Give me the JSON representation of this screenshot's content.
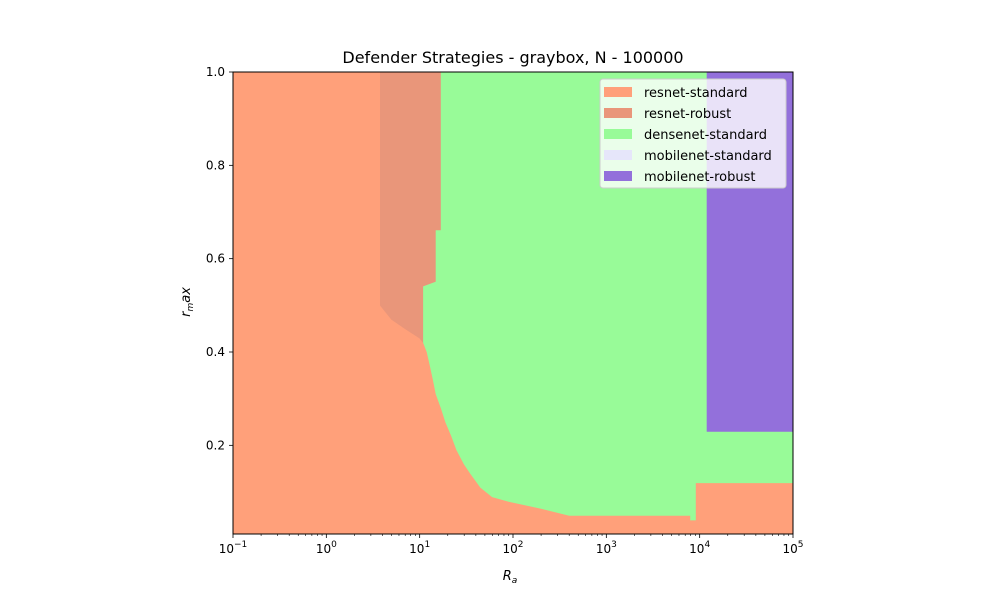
{
  "chart_data": {
    "type": "heatmap",
    "title": "Defender Strategies - graybox, N - 100000",
    "xlabel": "R",
    "xlabel_sub": "a",
    "ylabel": "r",
    "ylabel_sub": "m",
    "ylabel_rest": "ax",
    "x_scale": "log",
    "xlim": [
      0.1,
      100000
    ],
    "ylim": [
      0.01,
      1.0
    ],
    "x_ticks": [
      {
        "base": "10",
        "exp": "−1",
        "value": 0.1
      },
      {
        "base": "10",
        "exp": "0",
        "value": 1
      },
      {
        "base": "10",
        "exp": "1",
        "value": 10
      },
      {
        "base": "10",
        "exp": "2",
        "value": 100
      },
      {
        "base": "10",
        "exp": "3",
        "value": 1000
      },
      {
        "base": "10",
        "exp": "4",
        "value": 10000
      },
      {
        "base": "10",
        "exp": "5",
        "value": 100000
      }
    ],
    "y_ticks": [
      {
        "label": "0.2",
        "value": 0.2
      },
      {
        "label": "0.4",
        "value": 0.4
      },
      {
        "label": "0.6",
        "value": 0.6
      },
      {
        "label": "0.8",
        "value": 0.8
      },
      {
        "label": "1.0",
        "value": 1.0
      }
    ],
    "legend_position": "top-right",
    "legend": [
      {
        "label": "resnet-standard",
        "color": "#ffa07a"
      },
      {
        "label": "resnet-robust",
        "color": "#e9967a"
      },
      {
        "label": "densenet-standard",
        "color": "#98fb98"
      },
      {
        "label": "mobilenet-standard",
        "color": "#e6e6fa"
      },
      {
        "label": "mobilenet-robust",
        "color": "#9370db"
      }
    ],
    "regions": [
      {
        "strategy": "resnet-standard",
        "color": "#ffa07a",
        "polygon": [
          [
            0.1,
            0.01
          ],
          [
            0.1,
            1.0
          ],
          [
            3.8,
            1.0
          ],
          [
            3.8,
            0.5
          ],
          [
            5,
            0.47
          ],
          [
            7,
            0.45
          ],
          [
            10,
            0.43
          ],
          [
            12,
            0.42
          ],
          [
            12,
            0.4
          ],
          [
            13,
            0.37
          ],
          [
            14,
            0.34
          ],
          [
            15,
            0.31
          ],
          [
            17,
            0.28
          ],
          [
            19,
            0.25
          ],
          [
            22,
            0.22
          ],
          [
            25,
            0.19
          ],
          [
            30,
            0.16
          ],
          [
            35,
            0.14
          ],
          [
            45,
            0.11
          ],
          [
            60,
            0.09
          ],
          [
            90,
            0.08
          ],
          [
            200,
            0.065
          ],
          [
            400,
            0.05
          ],
          [
            8000,
            0.05
          ],
          [
            8000,
            0.04
          ],
          [
            9000,
            0.04
          ],
          [
            9000,
            0.12
          ],
          [
            100000,
            0.12
          ],
          [
            100000,
            0.01
          ]
        ]
      },
      {
        "strategy": "resnet-robust",
        "color": "#e9967a",
        "polygon": [
          [
            3.8,
            1.0
          ],
          [
            3.8,
            0.5
          ],
          [
            5,
            0.47
          ],
          [
            7,
            0.45
          ],
          [
            10,
            0.43
          ],
          [
            11,
            0.42
          ],
          [
            11,
            0.54
          ],
          [
            15,
            0.55
          ],
          [
            15,
            0.66
          ],
          [
            17,
            0.66
          ],
          [
            17,
            1.0
          ]
        ]
      },
      {
        "strategy": "densenet-standard",
        "color": "#98fb98",
        "polygon": [
          [
            17,
            1.0
          ],
          [
            17,
            0.66
          ],
          [
            15,
            0.66
          ],
          [
            15,
            0.55
          ],
          [
            11,
            0.54
          ],
          [
            11,
            0.42
          ],
          [
            12,
            0.4
          ],
          [
            13,
            0.37
          ],
          [
            14,
            0.34
          ],
          [
            15,
            0.31
          ],
          [
            17,
            0.28
          ],
          [
            19,
            0.25
          ],
          [
            22,
            0.22
          ],
          [
            25,
            0.19
          ],
          [
            30,
            0.16
          ],
          [
            35,
            0.14
          ],
          [
            45,
            0.11
          ],
          [
            60,
            0.09
          ],
          [
            90,
            0.08
          ],
          [
            200,
            0.065
          ],
          [
            400,
            0.05
          ],
          [
            8000,
            0.05
          ],
          [
            8000,
            0.04
          ],
          [
            9000,
            0.04
          ],
          [
            9000,
            0.12
          ],
          [
            100000,
            0.12
          ],
          [
            100000,
            0.23
          ],
          [
            12000,
            0.23
          ],
          [
            12000,
            1.0
          ]
        ]
      },
      {
        "strategy": "mobilenet-robust",
        "color": "#9370db",
        "polygon": [
          [
            12000,
            1.0
          ],
          [
            12000,
            0.23
          ],
          [
            100000,
            0.23
          ],
          [
            100000,
            1.0
          ]
        ]
      }
    ]
  }
}
